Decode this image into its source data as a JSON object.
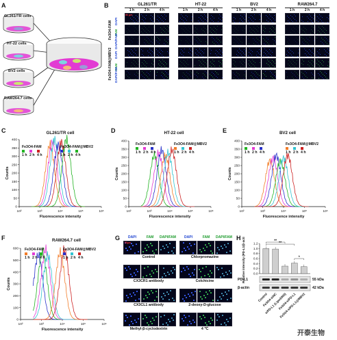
{
  "panels": {
    "A": "A",
    "B": "B",
    "C": "C",
    "D": "D",
    "E": "E",
    "F": "F",
    "G": "G",
    "H": "H"
  },
  "panelA": {
    "cells": [
      "GL261/TR cells",
      "HT-22 cells",
      "BV2 cells",
      "RAW264.7 cells"
    ]
  },
  "panelB": {
    "columns": [
      "GL261/TR",
      "HT-22",
      "BV2",
      "RAW264.7"
    ],
    "times": [
      "1 h",
      "2 h",
      "4 h"
    ],
    "channels": [
      "DAPI",
      "FAM",
      "DAPI/FAM"
    ],
    "groups": [
      "Fe3O4-FAM",
      "Fe3O4-FAM@MBV2"
    ],
    "scale_bar": "50 μm"
  },
  "chart_data": [
    {
      "type": "line",
      "title": "GL261/TR cell",
      "xlabel": "Fluorescence intensity",
      "ylabel": "Counts",
      "x_ticks": [
        "10²",
        "10³",
        "10⁴",
        "10⁵",
        "10⁶"
      ],
      "y_ticks": [
        "0",
        "50",
        "100",
        "150",
        "200",
        "250",
        "300",
        "350",
        "400"
      ],
      "legend": {
        "g1": "Fe3O4-FAM",
        "g2": "Fe3O4-FAM@MBV2",
        "times": [
          "1 h",
          "2 h",
          "4 h"
        ]
      },
      "series": [
        {
          "color": "#f27c28",
          "center": 3.5
        },
        {
          "color": "#e23bd3",
          "center": 3.62
        },
        {
          "color": "#33c3d1",
          "center": 3.72
        },
        {
          "color": "#2830c9",
          "center": 3.9
        },
        {
          "color": "#cc2020",
          "center": 4.05
        },
        {
          "color": "#22b322",
          "center": 4.3
        }
      ]
    },
    {
      "type": "line",
      "title": "HT-22 cell",
      "xlabel": "Fluorescence intensity",
      "ylabel": "Counts",
      "x_ticks": [
        "10²",
        "10³",
        "10⁴",
        "10⁵",
        "10⁶"
      ],
      "y_ticks": [
        "0",
        "50",
        "100",
        "150",
        "200",
        "250",
        "300",
        "350",
        "400"
      ],
      "legend": {
        "g1": "Fe3O4-FAM",
        "g2": "Fe3O4-FAM@MBV2",
        "times": [
          "1 h",
          "2 h",
          "4 h"
        ]
      },
      "series": [
        {
          "color": "#22b322",
          "center": 3.25
        },
        {
          "color": "#e23bd3",
          "center": 3.45
        },
        {
          "color": "#2830c9",
          "center": 3.6
        },
        {
          "color": "#f27c28",
          "center": 3.78
        },
        {
          "color": "#33c3d1",
          "center": 3.92
        },
        {
          "color": "#cc2020",
          "center": 4.1
        }
      ]
    },
    {
      "type": "line",
      "title": "BV2 cell",
      "xlabel": "Fluorescence intensity",
      "ylabel": "Counts",
      "x_ticks": [
        "10²",
        "10³",
        "10⁴",
        "10⁵",
        "10⁶"
      ],
      "y_ticks": [
        "0",
        "50",
        "100",
        "150",
        "200",
        "250",
        "300",
        "350",
        "400"
      ],
      "legend": {
        "g1": "Fe3O4-FAM",
        "g2": "Fe3O4-FAM@MBV2",
        "times": [
          "1 h",
          "2 h",
          "4 h"
        ]
      },
      "series": [
        {
          "color": "#f27c28",
          "center": 3.35
        },
        {
          "color": "#e23bd3",
          "center": 3.5
        },
        {
          "color": "#2830c9",
          "center": 3.65
        },
        {
          "color": "#22b322",
          "center": 3.85
        },
        {
          "color": "#33c3d1",
          "center": 4.0
        },
        {
          "color": "#cc2020",
          "center": 4.2
        }
      ]
    },
    {
      "type": "line",
      "title": "RAW264.7 cell",
      "xlabel": "Fluorescence intensity",
      "ylabel": "Counts",
      "x_ticks": [
        "10²",
        "10³",
        "10⁴",
        "10⁵",
        "10⁶"
      ],
      "y_ticks": [
        "0",
        "100",
        "200",
        "300",
        "400",
        "500",
        "600"
      ],
      "legend": {
        "g1": "Fe3O4-FAM",
        "g2": "Fe3O4-FAM@MBV2",
        "times": [
          "1 h",
          "2 h",
          "4 h"
        ]
      },
      "series": [
        {
          "color": "#2830c9",
          "center": 2.85
        },
        {
          "color": "#22b322",
          "center": 3.05
        },
        {
          "color": "#e23bd3",
          "center": 3.2
        },
        {
          "color": "#33c3d1",
          "center": 3.3
        },
        {
          "color": "#f27c28",
          "center": 3.9
        },
        {
          "color": "#cc2020",
          "center": 4.1
        }
      ]
    },
    {
      "type": "bar",
      "ylabel": "Relative intensity (PD-L1/β-actin)",
      "ylim": [
        0,
        1.2
      ],
      "y_ticks": [
        "0.0",
        "0.2",
        "0.4",
        "0.6",
        "0.8",
        "1.0",
        "1.2"
      ],
      "categories": [
        "Control",
        "Fe3O4-siNC",
        "siPD-L1 (Lipo3000)",
        "Fe3O4-siPD-L1",
        "Fe3O4-siPD-L1@MBV2"
      ],
      "values": [
        1.0,
        0.98,
        0.3,
        0.42,
        0.28
      ],
      "significance": [
        "**",
        "**",
        "*"
      ]
    }
  ],
  "panelG": {
    "channels": [
      "DAPI",
      "FAM",
      "DAPI/FAM"
    ],
    "conditions_left": [
      "Control",
      "CX3CR1 antibody",
      "CX3CL1 antibody",
      "Methyl-β-cyclodextrin"
    ],
    "conditions_right": [
      "Chlorpromazine",
      "Colchicine",
      "2-deoxy-D-glucose",
      "4 ℃"
    ],
    "scale_bar": "50μm"
  },
  "panelH": {
    "blots": [
      {
        "label": "PD-L1",
        "size": "55 kDa"
      },
      {
        "label": "β-actin",
        "size": "42 kDa"
      }
    ]
  },
  "watermark": "开泰生物"
}
